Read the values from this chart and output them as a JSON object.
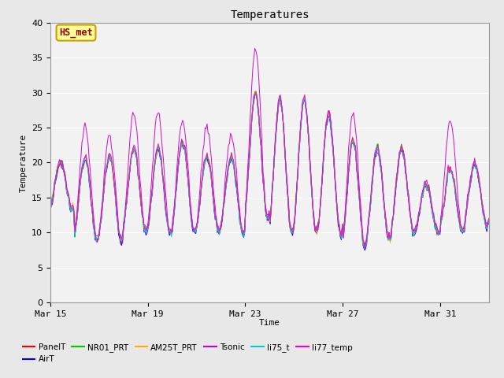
{
  "title": "Temperatures",
  "xlabel": "Time",
  "ylabel": "Temperature",
  "ylim": [
    0,
    40
  ],
  "yticks": [
    0,
    5,
    10,
    15,
    20,
    25,
    30,
    35,
    40
  ],
  "bg_color": "#e8e8e8",
  "plot_bg_color": "#f2f2f2",
  "annotation_text": "HS_met",
  "annotation_color": "#8B0000",
  "annotation_bg": "#ffff99",
  "annotation_border": "#c8a000",
  "series": [
    {
      "name": "PanelT",
      "color": "#ff0000"
    },
    {
      "name": "AirT",
      "color": "#0000ff"
    },
    {
      "name": "NR01_PRT",
      "color": "#00cc00"
    },
    {
      "name": "AM25T_PRT",
      "color": "#ffaa00"
    },
    {
      "name": "Tsonic",
      "color": "#cc00cc"
    },
    {
      "name": "li75_t",
      "color": "#00cccc"
    },
    {
      "name": "li77_temp",
      "color": "#ff00cc"
    }
  ],
  "x_tick_labels": [
    "Mar 15",
    "Mar 19",
    "Mar 23",
    "Mar 27",
    "Mar 31"
  ],
  "x_tick_positions": [
    0,
    4,
    8,
    12,
    16
  ],
  "total_days": 18,
  "points_per_day": 24
}
